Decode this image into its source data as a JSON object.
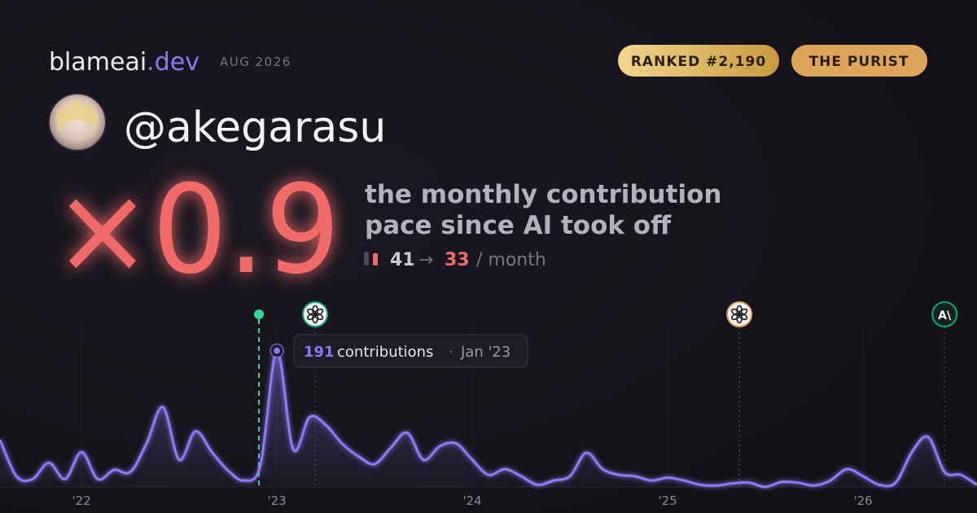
{
  "header": {
    "brand": "blameai",
    "brand_tld": ".dev",
    "period": "AUG 2026",
    "rank_badge": "RANKED #2,190",
    "persona_badge": "THE PURIST",
    "handle": "@akegarasu"
  },
  "stats": {
    "multiplier": "×0.9",
    "caption_line1": "the monthly contribution",
    "caption_line2": "pace since AI took off",
    "before": "41",
    "arrow": "→",
    "after": "33",
    "unit": "/ month"
  },
  "chart_data": {
    "type": "line",
    "color": "#8b7cf6",
    "grid": true,
    "x": [
      21.583,
      21.667,
      21.75,
      21.833,
      21.917,
      22,
      22.083,
      22.167,
      22.25,
      22.333,
      22.417,
      22.5,
      22.583,
      22.667,
      22.75,
      22.833,
      22.917,
      23,
      23.083,
      23.167,
      23.25,
      23.333,
      23.417,
      23.5,
      23.583,
      23.667,
      23.75,
      23.833,
      23.917,
      24,
      24.083,
      24.167,
      24.25,
      24.333,
      24.417,
      24.5,
      24.583,
      24.667,
      24.75,
      24.833,
      24.917,
      25,
      25.083,
      25.167,
      25.25,
      25.333,
      25.417,
      25.5,
      25.583,
      25.667,
      25.75,
      25.833,
      25.917,
      26,
      26.083,
      26.167,
      26.25,
      26.333,
      26.417,
      26.5,
      26.583
    ],
    "values": [
      66,
      15,
      11,
      34,
      11,
      49,
      11,
      24,
      21,
      61,
      112,
      38,
      78,
      49,
      23,
      9,
      32,
      191,
      53,
      98,
      87,
      61,
      43,
      32,
      55,
      76,
      38,
      57,
      61,
      38,
      17,
      25,
      15,
      3,
      9,
      15,
      48,
      25,
      17,
      15,
      9,
      13,
      9,
      3,
      2,
      5,
      6,
      0,
      7,
      6,
      2,
      9,
      25,
      15,
      3,
      6,
      49,
      70,
      21,
      17,
      3
    ],
    "xlim": [
      21.583,
      26.583
    ],
    "ylim": [
      0,
      226
    ],
    "xticks": [
      {
        "value": 22,
        "label": "'22"
      },
      {
        "value": 23,
        "label": "'23"
      },
      {
        "value": 24,
        "label": "'24"
      },
      {
        "value": 25,
        "label": "'25"
      },
      {
        "value": 26,
        "label": "'26"
      }
    ],
    "events": [
      {
        "x": 22.908,
        "color": "#34d399",
        "icon": "dot"
      },
      {
        "x": 23.196,
        "color": "#10a37f",
        "icon": "openai"
      },
      {
        "x": 25.367,
        "color": "#d9a066",
        "icon": "openai"
      },
      {
        "x": 26.417,
        "color": "#10a37f",
        "icon": "anthropic",
        "label": "A\\"
      }
    ],
    "tooltip": {
      "label": "contributions",
      "separator": "·",
      "date": "Jan '23"
    }
  }
}
